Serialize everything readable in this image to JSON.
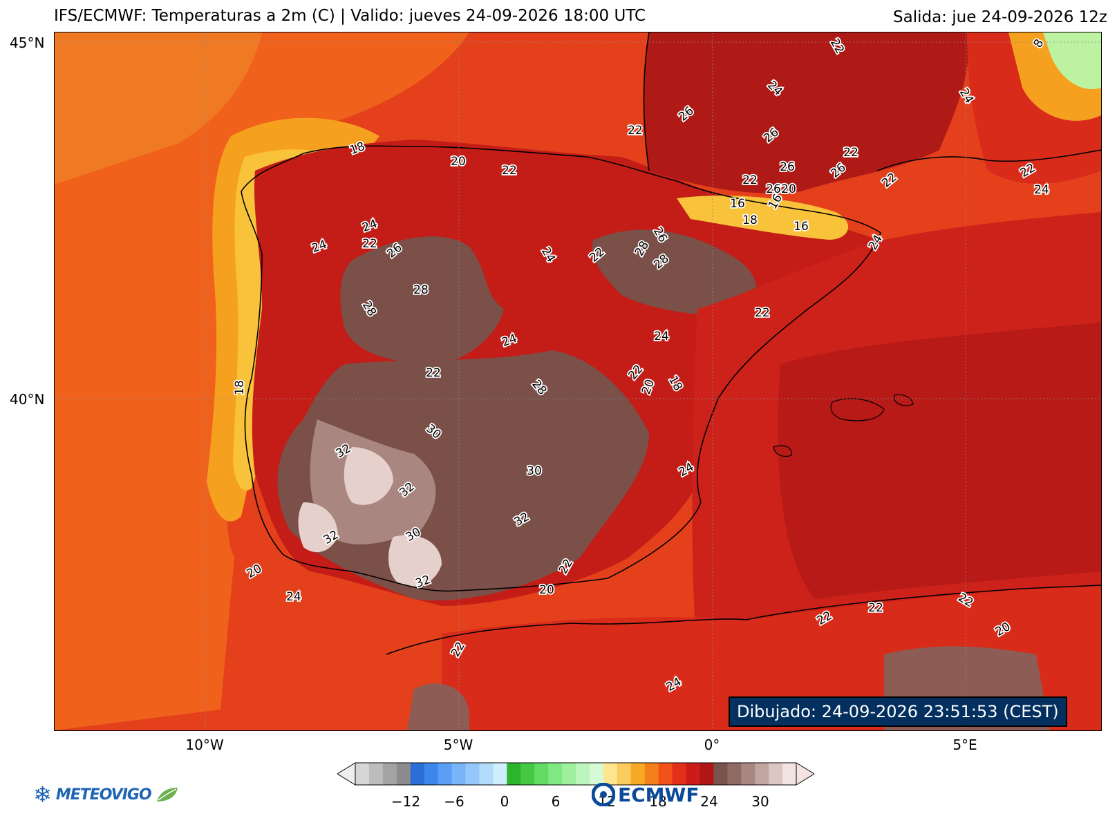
{
  "header": {
    "title": "IFS/ECMWF: Temperaturas a 2m (C) | Valido: jueves 24-09-2026 18:00 UTC",
    "run": "Salida: jue 24-09-2026 12z"
  },
  "axes": {
    "lat_ticks": [
      "45°N",
      "40°N"
    ],
    "lon_ticks": [
      "10°W",
      "5°W",
      "0°",
      "5°E"
    ]
  },
  "drawn_timestamp": "Dibujado: 24-09-2026 23:51:53 (CEST)",
  "colorbar": {
    "ticks": [
      "−12",
      "−6",
      "0",
      "6",
      "12",
      "18",
      "24",
      "30"
    ],
    "colors": [
      "#d6d6d6",
      "#bdbdbd",
      "#a3a3a3",
      "#8c8c8c",
      "#2b6fd6",
      "#3d86ea",
      "#5a9ff5",
      "#78b4f8",
      "#95c8fa",
      "#b3dbfc",
      "#cfeefe",
      "#2bb52b",
      "#45c945",
      "#63dc63",
      "#80e880",
      "#9ef09e",
      "#bcf6bc",
      "#d6fad6",
      "#fde68f",
      "#fbcb5d",
      "#f7a926",
      "#f57f18",
      "#f4511a",
      "#e3301b",
      "#cc1c1a",
      "#b01616",
      "#7a534c",
      "#8f6b64",
      "#a78780",
      "#c0a5a0",
      "#dcc6c2",
      "#f3e3e1"
    ]
  },
  "logos": {
    "meteovigo": "METEOVIGO",
    "ecmwf": "ECMWF"
  },
  "contour_labels": [
    "18",
    "20",
    "22",
    "22",
    "18",
    "24",
    "24",
    "22",
    "26",
    "28",
    "28",
    "26",
    "24",
    "22",
    "26",
    "28",
    "28",
    "26",
    "24",
    "22",
    "26",
    "26",
    "22",
    "26",
    "22",
    "20",
    "16",
    "16",
    "18",
    "16",
    "22",
    "24",
    "24",
    "8",
    "22",
    "24",
    "22",
    "24",
    "28",
    "24",
    "22",
    "22",
    "20",
    "18",
    "30",
    "32",
    "32",
    "30",
    "24",
    "32",
    "32",
    "30",
    "32",
    "20",
    "24",
    "20",
    "22",
    "22",
    "22",
    "22",
    "22",
    "20",
    "24"
  ]
}
